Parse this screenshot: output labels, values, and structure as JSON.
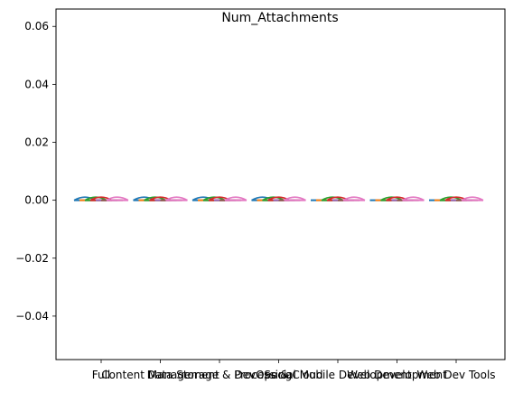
{
  "chart_data": {
    "type": "violin",
    "title": "Num_Attachments",
    "xlabel": "",
    "ylabel": "",
    "ylim": [
      -0.055,
      0.066
    ],
    "yticks": [
      -0.04,
      -0.02,
      0.0,
      0.02,
      0.04,
      0.06
    ],
    "ytick_labels": [
      "−0.04",
      "−0.02",
      "0.00",
      "0.02",
      "0.04",
      "0.06"
    ],
    "categories": [
      "Full",
      "Content Management",
      "Data Storage & Processing",
      "DevOps & Cloud",
      "Social Mobile Development",
      "Web Development",
      "Web Dev Tools"
    ],
    "series_colors": [
      "#1f77b4",
      "#ff7f0e",
      "#2ca02c",
      "#d62728",
      "#9467bd",
      "#8c564b",
      "#e377c2"
    ],
    "values": [
      0,
      0,
      0,
      0,
      0,
      0,
      0
    ]
  }
}
